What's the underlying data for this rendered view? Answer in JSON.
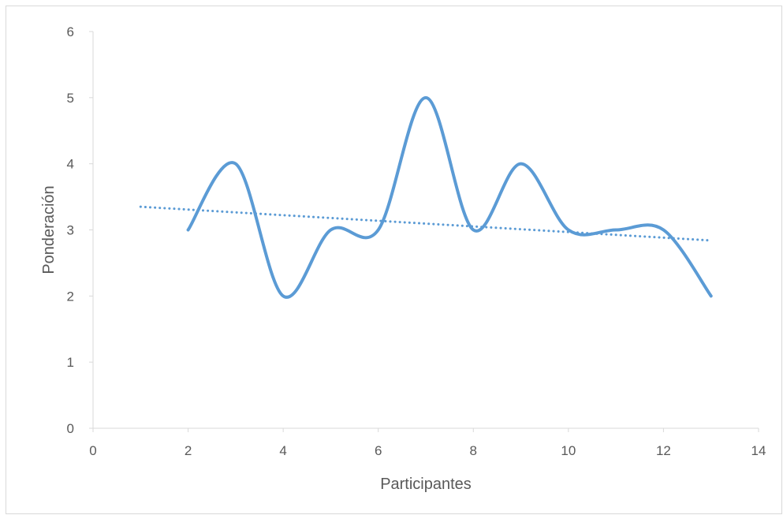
{
  "chart_data": {
    "type": "line",
    "title": "",
    "xlabel": "Participantes",
    "ylabel": "Ponderación",
    "xlim": [
      0,
      14
    ],
    "ylim": [
      0,
      6
    ],
    "xticks": [
      0,
      2,
      4,
      6,
      8,
      10,
      12,
      14
    ],
    "yticks": [
      0,
      1,
      2,
      3,
      4,
      5,
      6
    ],
    "grid": false,
    "legend": "none",
    "series": [
      {
        "style": "smoothed-line",
        "color": "#5b9bd5",
        "x": [
          2,
          3,
          4,
          5,
          6,
          7,
          8,
          9,
          10,
          11,
          12,
          13
        ],
        "y": [
          3,
          4,
          2,
          3,
          3,
          5,
          3,
          4,
          3,
          3,
          3,
          2
        ]
      },
      {
        "style": "dotted-trendline",
        "color": "#5b9bd5",
        "x": [
          1,
          13
        ],
        "y": [
          3.35,
          2.84
        ]
      }
    ]
  }
}
